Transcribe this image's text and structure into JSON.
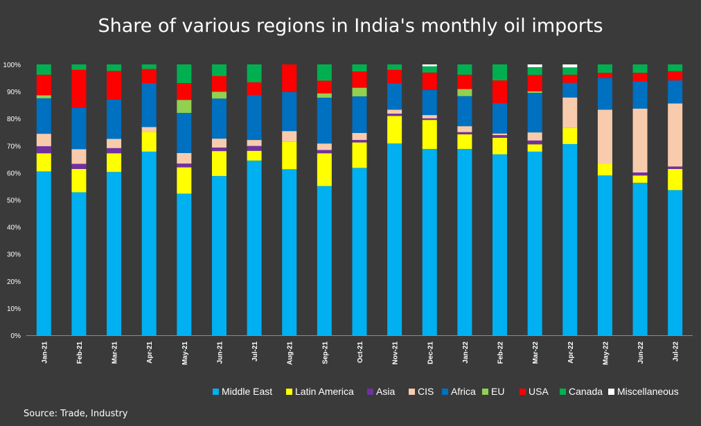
{
  "title": "Share of various regions in India's monthly oil imports",
  "source": "Source: Trade, Industry",
  "chart_data": {
    "type": "bar",
    "stacked": true,
    "percent": true,
    "ylim": [
      0,
      100
    ],
    "yticks": [
      "0%",
      "10%",
      "20%",
      "30%",
      "40%",
      "50%",
      "60%",
      "70%",
      "80%",
      "90%",
      "100%"
    ],
    "legend_position": "bottom",
    "grid": false,
    "categories": [
      "Jan-21",
      "Feb-21",
      "Mar-21",
      "Apr-21",
      "May-21",
      "Jun-21",
      "Jul-21",
      "Aug-21",
      "Sep-21",
      "Oct-21",
      "Nov-21",
      "Dec-21",
      "Jan-22",
      "Feb-22",
      "Mar-22",
      "Apr-22",
      "May-22",
      "Jun-22",
      "Jul-22"
    ],
    "series": [
      {
        "name": "Middle East",
        "color": "#00b0f0",
        "values": [
          60.5,
          52.8,
          60.3,
          67.8,
          52.3,
          58.8,
          64.5,
          61.3,
          55.1,
          61.8,
          70.8,
          68.8,
          68.8,
          66.8,
          67.8,
          70.6,
          59.0,
          56.3,
          53.6
        ]
      },
      {
        "name": "Latin America",
        "color": "#ffff00",
        "values": [
          6.7,
          8.6,
          6.9,
          7.3,
          9.7,
          9.2,
          3.6,
          10.1,
          12.1,
          9.4,
          10.2,
          10.7,
          5.4,
          6.1,
          2.7,
          5.9,
          4.3,
          2.7,
          7.8
        ]
      },
      {
        "name": "Asia",
        "color": "#7030a0",
        "values": [
          2.6,
          1.9,
          1.9,
          0.0,
          1.4,
          1.3,
          1.8,
          0.0,
          1.2,
          0.9,
          0.8,
          0.6,
          0.8,
          1.0,
          1.4,
          0.0,
          0.0,
          1.1,
          0.9
        ]
      },
      {
        "name": "CIS",
        "color": "#f8cbad",
        "values": [
          4.6,
          5.4,
          3.4,
          1.8,
          3.9,
          3.3,
          2.2,
          4.0,
          2.4,
          2.6,
          1.5,
          1.2,
          2.2,
          0.6,
          3.0,
          11.3,
          20.0,
          23.6,
          23.3
        ]
      },
      {
        "name": "Africa",
        "color": "#0070c0",
        "values": [
          13.1,
          15.3,
          14.5,
          16.2,
          14.8,
          14.8,
          16.6,
          14.4,
          16.9,
          13.5,
          9.7,
          9.3,
          11.1,
          11.2,
          14.6,
          5.4,
          11.7,
          10.1,
          8.5
        ]
      },
      {
        "name": "EU",
        "color": "#92d050",
        "values": [
          1.1,
          0.0,
          0.0,
          0.0,
          4.8,
          2.5,
          0.0,
          0.0,
          1.6,
          3.2,
          0.0,
          0.0,
          2.6,
          0.0,
          0.6,
          0.0,
          0.0,
          0.0,
          0.0
        ]
      },
      {
        "name": "USA",
        "color": "#ff0000",
        "values": [
          7.6,
          14.0,
          10.6,
          5.2,
          6.2,
          5.8,
          4.7,
          10.2,
          4.7,
          6.0,
          5.0,
          6.4,
          5.3,
          8.4,
          6.0,
          3.0,
          1.9,
          3.1,
          3.4
        ]
      },
      {
        "name": "Canada",
        "color": "#00b050",
        "values": [
          3.8,
          2.0,
          2.4,
          1.7,
          6.9,
          4.3,
          6.6,
          0.0,
          6.0,
          2.6,
          2.0,
          2.3,
          3.8,
          5.9,
          2.9,
          2.7,
          3.1,
          3.1,
          2.5
        ]
      },
      {
        "name": "Miscellaneous",
        "color": "#ffffff",
        "values": [
          0.0,
          0.0,
          0.0,
          0.0,
          0.0,
          0.0,
          0.0,
          0.0,
          0.0,
          0.0,
          0.0,
          0.7,
          0.0,
          0.0,
          1.0,
          1.1,
          0.0,
          0.0,
          0.0
        ]
      }
    ]
  }
}
